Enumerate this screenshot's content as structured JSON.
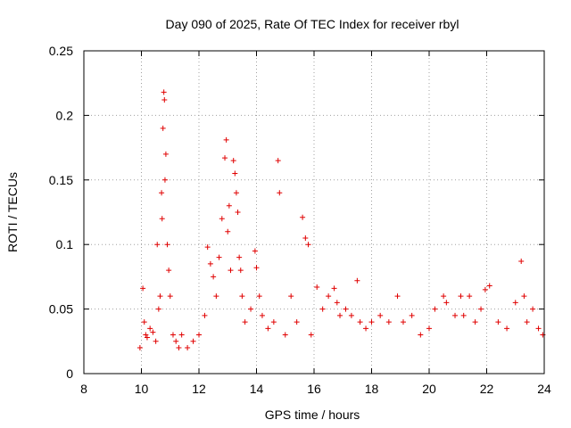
{
  "chart_data": {
    "type": "scatter",
    "title": "Day 090 of 2025, Rate Of TEC Index for receiver rbyl",
    "xlabel": "GPS time / hours",
    "ylabel": "ROTI / TECUs",
    "xlim": [
      8,
      24
    ],
    "ylim": [
      0,
      0.25
    ],
    "grid": true,
    "marker": "+",
    "color": "#e00000",
    "xticks": [
      8,
      10,
      12,
      14,
      16,
      18,
      20,
      22,
      24
    ],
    "xtick_labels": [
      "8",
      "10",
      "12",
      "14",
      "16",
      "18",
      "20",
      "22",
      "24"
    ],
    "yticks": [
      0,
      0.05,
      0.1,
      0.15,
      0.2,
      0.25
    ],
    "ytick_labels": [
      "0",
      "0.05",
      "0.1",
      "0.15",
      "0.2",
      "0.25"
    ],
    "series": [
      {
        "name": "ROTI",
        "x": [
          9.95,
          10.05,
          10.1,
          10.15,
          10.2,
          10.3,
          10.4,
          10.5,
          10.55,
          10.6,
          10.65,
          10.7,
          10.72,
          10.75,
          10.78,
          10.8,
          10.82,
          10.85,
          10.9,
          10.95,
          11.0,
          11.1,
          11.2,
          11.3,
          11.4,
          11.6,
          11.8,
          12.0,
          12.2,
          12.3,
          12.4,
          12.5,
          12.6,
          12.7,
          12.8,
          12.9,
          12.95,
          13.0,
          13.05,
          13.1,
          13.2,
          13.25,
          13.3,
          13.35,
          13.4,
          13.45,
          13.5,
          13.6,
          13.8,
          13.95,
          14.0,
          14.1,
          14.2,
          14.4,
          14.6,
          14.75,
          14.8,
          15.0,
          15.2,
          15.4,
          15.6,
          15.7,
          15.8,
          15.9,
          16.1,
          16.3,
          16.5,
          16.7,
          16.8,
          16.9,
          17.1,
          17.3,
          17.5,
          17.6,
          17.8,
          18.0,
          18.3,
          18.6,
          18.9,
          19.1,
          19.4,
          19.7,
          20.0,
          20.2,
          20.5,
          20.6,
          20.9,
          21.1,
          21.2,
          21.4,
          21.6,
          21.8,
          21.95,
          22.1,
          22.4,
          22.7,
          23.0,
          23.2,
          23.3,
          23.4,
          23.6,
          23.8,
          23.95
        ],
        "y": [
          0.02,
          0.066,
          0.04,
          0.03,
          0.028,
          0.035,
          0.032,
          0.025,
          0.1,
          0.05,
          0.06,
          0.14,
          0.12,
          0.19,
          0.218,
          0.212,
          0.15,
          0.17,
          0.1,
          0.08,
          0.06,
          0.03,
          0.025,
          0.02,
          0.03,
          0.02,
          0.025,
          0.03,
          0.045,
          0.098,
          0.085,
          0.075,
          0.06,
          0.09,
          0.12,
          0.167,
          0.181,
          0.11,
          0.13,
          0.08,
          0.165,
          0.155,
          0.14,
          0.125,
          0.09,
          0.08,
          0.06,
          0.04,
          0.05,
          0.095,
          0.082,
          0.06,
          0.045,
          0.035,
          0.04,
          0.165,
          0.14,
          0.03,
          0.06,
          0.04,
          0.121,
          0.105,
          0.1,
          0.03,
          0.067,
          0.05,
          0.06,
          0.066,
          0.055,
          0.045,
          0.05,
          0.045,
          0.072,
          0.04,
          0.035,
          0.04,
          0.045,
          0.04,
          0.06,
          0.04,
          0.045,
          0.03,
          0.035,
          0.05,
          0.06,
          0.055,
          0.045,
          0.06,
          0.045,
          0.06,
          0.04,
          0.05,
          0.065,
          0.068,
          0.04,
          0.035,
          0.055,
          0.087,
          0.06,
          0.04,
          0.05,
          0.035,
          0.03
        ]
      }
    ]
  }
}
